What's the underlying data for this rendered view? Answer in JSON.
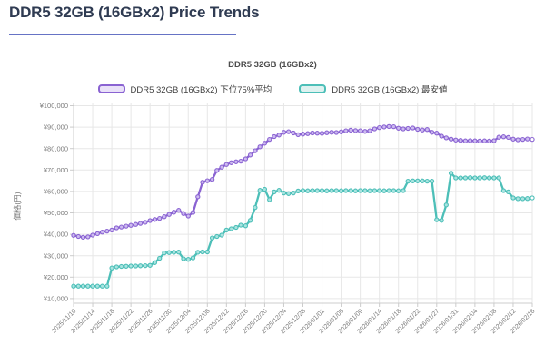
{
  "page": {
    "title": "DDR5 32GB (16GBx2) Price Trends"
  },
  "chart_data": {
    "type": "line",
    "title": "DDR5 32GB (16GBx2)",
    "ylabel": "価格(円)",
    "ylim": [
      10000,
      100000
    ],
    "y_tick_step": 10000,
    "grid": true,
    "legend_position": "top",
    "y_ticks": [
      "¥10,000",
      "¥20,000",
      "¥30,000",
      "¥40,000",
      "¥50,000",
      "¥60,000",
      "¥70,000",
      "¥80,000",
      "¥90,000",
      "¥100,000"
    ],
    "x_tick_every": 4,
    "x_ticks": [
      "2025/11/10",
      "2025/11/14",
      "2025/11/18",
      "2025/11/22",
      "2025/11/26",
      "2025/11/30",
      "2025/12/04",
      "2025/12/08",
      "2025/12/12",
      "2025/12/16",
      "2025/12/20",
      "2025/12/24",
      "2025/12/28",
      "2026/01/01",
      "2026/01/05",
      "2026/01/09",
      "2026/01/14",
      "2026/01/18",
      "2026/01/22",
      "2026/01/27",
      "2026/01/31",
      "2026/02/04",
      "2026/02/08",
      "2026/02/12",
      "2026/02/16"
    ],
    "x": [
      "2025/11/10",
      "2025/11/11",
      "2025/11/12",
      "2025/11/13",
      "2025/11/14",
      "2025/11/15",
      "2025/11/16",
      "2025/11/17",
      "2025/11/18",
      "2025/11/19",
      "2025/11/20",
      "2025/11/21",
      "2025/11/22",
      "2025/11/23",
      "2025/11/24",
      "2025/11/25",
      "2025/11/26",
      "2025/11/27",
      "2025/11/28",
      "2025/11/29",
      "2025/11/30",
      "2025/12/01",
      "2025/12/02",
      "2025/12/03",
      "2025/12/04",
      "2025/12/05",
      "2025/12/06",
      "2025/12/07",
      "2025/12/08",
      "2025/12/09",
      "2025/12/10",
      "2025/12/11",
      "2025/12/12",
      "2025/12/13",
      "2025/12/14",
      "2025/12/15",
      "2025/12/16",
      "2025/12/17",
      "2025/12/18",
      "2025/12/19",
      "2025/12/20",
      "2025/12/21",
      "2025/12/22",
      "2025/12/23",
      "2025/12/24",
      "2025/12/25",
      "2025/12/26",
      "2025/12/27",
      "2025/12/28",
      "2025/12/29",
      "2025/12/30",
      "2025/12/31",
      "2026/01/01",
      "2026/01/02",
      "2026/01/03",
      "2026/01/04",
      "2026/01/05",
      "2026/01/06",
      "2026/01/07",
      "2026/01/08",
      "2026/01/09",
      "2026/01/10",
      "2026/01/11",
      "2026/01/13",
      "2026/01/14",
      "2026/01/15",
      "2026/01/16",
      "2026/01/17",
      "2026/01/18",
      "2026/01/19",
      "2026/01/20",
      "2026/01/21",
      "2026/01/22",
      "2026/01/23",
      "2026/01/24",
      "2026/01/26",
      "2026/01/27",
      "2026/01/28",
      "2026/01/29",
      "2026/01/30",
      "2026/01/31",
      "2026/02/01",
      "2026/02/02",
      "2026/02/03",
      "2026/02/04",
      "2026/02/05",
      "2026/02/06",
      "2026/02/07",
      "2026/02/08",
      "2026/02/09",
      "2026/02/10",
      "2026/02/11",
      "2026/02/12",
      "2026/02/13",
      "2026/02/14",
      "2026/02/15",
      "2026/02/16"
    ],
    "series": [
      {
        "name": "DDR5 32GB (16GBx2) 下位75%平均",
        "color": "#8a63d2",
        "marker_fill": "#cdbbf0",
        "values": [
          39500,
          39000,
          38600,
          38800,
          39600,
          40300,
          41000,
          41500,
          42000,
          43000,
          43400,
          43800,
          44200,
          44600,
          45100,
          45600,
          46400,
          46900,
          47400,
          48200,
          49300,
          50300,
          51200,
          49700,
          48500,
          50200,
          57500,
          64300,
          65000,
          65600,
          69800,
          71300,
          72600,
          73400,
          73800,
          74100,
          75200,
          77000,
          79000,
          80800,
          82500,
          84300,
          85600,
          86300,
          87600,
          87900,
          87300,
          86500,
          86800,
          87000,
          87300,
          87200,
          87100,
          87400,
          87600,
          87500,
          87800,
          88300,
          88600,
          88400,
          88300,
          88000,
          88300,
          89200,
          89800,
          90100,
          90300,
          90200,
          89500,
          89200,
          89400,
          89600,
          89000,
          88700,
          88900,
          87600,
          87200,
          85800,
          85000,
          84400,
          84000,
          83800,
          83600,
          83700,
          83600,
          83500,
          83600,
          83500,
          83700,
          85300,
          85500,
          85200,
          84400,
          84100,
          84300,
          84500,
          84300
        ]
      },
      {
        "name": "DDR5 32GB (16GBx2) 最安値",
        "color": "#4dbfb8",
        "marker_fill": "#a9e4e0",
        "values": [
          15800,
          15800,
          15800,
          15800,
          15800,
          15800,
          15800,
          15800,
          24300,
          24800,
          25000,
          25100,
          25200,
          25200,
          25300,
          25400,
          25500,
          26800,
          28800,
          31300,
          31500,
          31600,
          31700,
          28600,
          28300,
          29000,
          31600,
          31800,
          31800,
          38300,
          39000,
          39600,
          42000,
          42600,
          43200,
          44300,
          44000,
          46500,
          52500,
          60500,
          61000,
          56200,
          59800,
          60500,
          59300,
          59000,
          59300,
          60200,
          60400,
          60300,
          60400,
          60400,
          60400,
          60300,
          60400,
          60400,
          60300,
          60400,
          60400,
          60300,
          60400,
          60400,
          60300,
          60400,
          60400,
          60300,
          60400,
          60400,
          60300,
          60400,
          64800,
          64900,
          64900,
          64900,
          64800,
          64800,
          46800,
          46500,
          53700,
          68500,
          66300,
          66300,
          66300,
          66400,
          66300,
          66300,
          66400,
          66300,
          66300,
          66300,
          60400,
          59800,
          57000,
          56600,
          56600,
          56700,
          57000
        ]
      }
    ],
    "legend_fills": [
      "#e9e1f8",
      "#def2f0"
    ]
  },
  "colors": {
    "page_title": "#2f3b52",
    "title_underline": "#6673c5",
    "gridline": "#e7e7e7",
    "axis_line": "#cccccc",
    "axis_text": "#7a7a7a"
  }
}
